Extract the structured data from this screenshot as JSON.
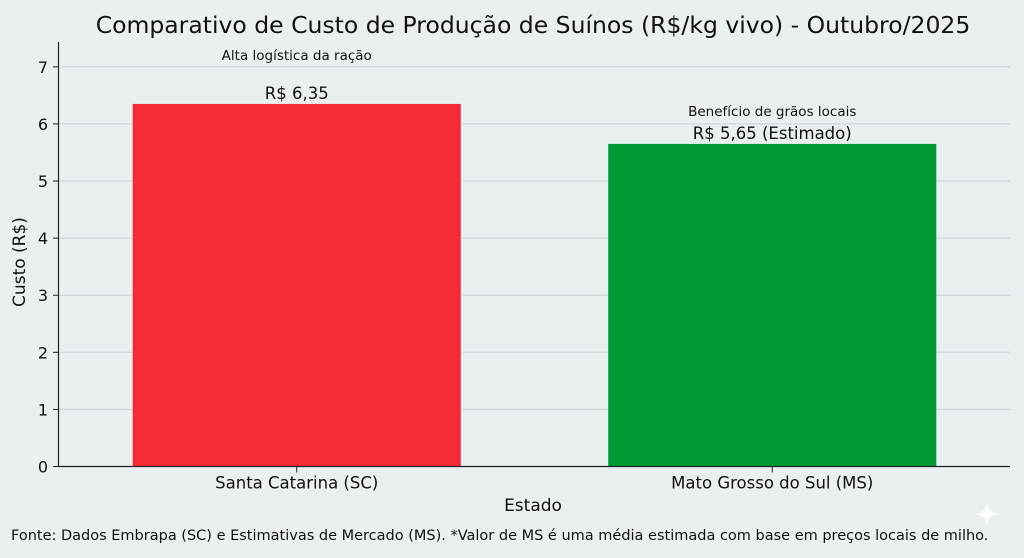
{
  "chart_data": {
    "type": "bar",
    "title": "Comparativo de Custo de Produção de Suínos (R$/kg vivo) - Outubro/2025",
    "xlabel": "Estado",
    "ylabel": "Custo (R$)",
    "ylim": [
      0,
      7.4
    ],
    "yticks": [
      0,
      1,
      2,
      3,
      4,
      5,
      6,
      7
    ],
    "grid": "horizontal",
    "categories": [
      "Santa Catarina (SC)",
      "Mato Grosso do Sul (MS)"
    ],
    "values": [
      6.35,
      5.65
    ],
    "colors": [
      "#f52a35",
      "#009a36"
    ],
    "value_labels": [
      "R$ 6,35",
      "R$ 5,65 (Estimado)"
    ],
    "annotations": [
      "Alta logística da ração",
      "Benefício de grãos locais"
    ]
  },
  "footnote": "Fonte: Dados Embrapa (SC) e Estimativas de Mercado (MS). *Valor de MS é uma média estimada com base em preços locais de milho."
}
